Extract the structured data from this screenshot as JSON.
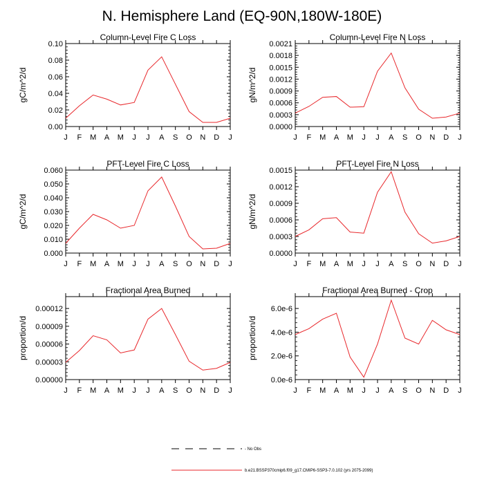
{
  "title": "N. Hemisphere Land (EQ-90N,180W-180E)",
  "months": [
    "J",
    "F",
    "M",
    "A",
    "M",
    "J",
    "J",
    "A",
    "S",
    "O",
    "N",
    "D",
    "J"
  ],
  "line_color": "#e8262a",
  "legend": {
    "entries": [
      {
        "label": "No Obs",
        "style": "dashed",
        "color": "#000000"
      },
      {
        "label": "b.e21.BSSP370cmip6.f09_g17.CMIP6-SSP3-7.0.102 (yrs 2075-2099)",
        "style": "solid",
        "color": "#e8262a"
      }
    ]
  },
  "chart_data": [
    {
      "type": "line",
      "title": "Column-Level Fire C Loss",
      "ylabel": "gC/m^2/d",
      "ylim": [
        0,
        0.1
      ],
      "yticks": [
        0,
        0.02,
        0.04,
        0.06,
        0.08,
        0.1
      ],
      "ytick_labels": [
        "0.00",
        "0.02",
        "0.04",
        "0.06",
        "0.08",
        "0.10"
      ],
      "x": [
        "J",
        "F",
        "M",
        "A",
        "M",
        "J",
        "J",
        "A",
        "S",
        "O",
        "N",
        "D",
        "J"
      ],
      "values": [
        0.01,
        0.025,
        0.038,
        0.033,
        0.026,
        0.029,
        0.068,
        0.084,
        0.051,
        0.018,
        0.005,
        0.005,
        0.01
      ]
    },
    {
      "type": "line",
      "title": "Column-Level Fire N Loss",
      "ylabel": "gN/m^2/d",
      "ylim": [
        0,
        0.0021
      ],
      "yticks": [
        0,
        0.0003,
        0.0006,
        0.0009,
        0.0012,
        0.0015,
        0.0018,
        0.0021
      ],
      "ytick_labels": [
        "0.0000",
        "0.0003",
        "0.0006",
        "0.0009",
        "0.0012",
        "0.0015",
        "0.0018",
        "0.0021"
      ],
      "x": [
        "J",
        "F",
        "M",
        "A",
        "M",
        "J",
        "J",
        "A",
        "S",
        "O",
        "N",
        "D",
        "J"
      ],
      "values": [
        0.00034,
        0.00051,
        0.00074,
        0.00076,
        0.00049,
        0.0005,
        0.0014,
        0.00186,
        0.00098,
        0.00044,
        0.00021,
        0.00024,
        0.00034
      ]
    },
    {
      "type": "line",
      "title": "PFT-Level Fire C Loss",
      "ylabel": "gC/m^2/d",
      "ylim": [
        0,
        0.06
      ],
      "yticks": [
        0,
        0.01,
        0.02,
        0.03,
        0.04,
        0.05,
        0.06
      ],
      "ytick_labels": [
        "0.000",
        "0.010",
        "0.020",
        "0.030",
        "0.040",
        "0.050",
        "0.060"
      ],
      "x": [
        "J",
        "F",
        "M",
        "A",
        "M",
        "J",
        "J",
        "A",
        "S",
        "O",
        "N",
        "D",
        "J"
      ],
      "values": [
        0.007,
        0.018,
        0.028,
        0.024,
        0.018,
        0.02,
        0.045,
        0.055,
        0.034,
        0.012,
        0.003,
        0.0035,
        0.007
      ]
    },
    {
      "type": "line",
      "title": "PFT-Level Fire N Loss",
      "ylabel": "gN/m^2/d",
      "ylim": [
        0,
        0.0015
      ],
      "yticks": [
        0,
        0.0003,
        0.0006,
        0.0009,
        0.0012,
        0.0015
      ],
      "ytick_labels": [
        "0.0000",
        "0.0003",
        "0.0006",
        "0.0009",
        "0.0012",
        "0.0015"
      ],
      "x": [
        "J",
        "F",
        "M",
        "A",
        "M",
        "J",
        "J",
        "A",
        "S",
        "O",
        "N",
        "D",
        "J"
      ],
      "values": [
        0.0003,
        0.00042,
        0.00062,
        0.00064,
        0.00038,
        0.00036,
        0.0011,
        0.00147,
        0.00074,
        0.00035,
        0.00018,
        0.00022,
        0.0003
      ]
    },
    {
      "type": "line",
      "title": "Fractional Area Burned",
      "ylabel": "proportion/d",
      "ylim": [
        0,
        0.00014
      ],
      "yticks": [
        0,
        3e-05,
        6e-05,
        9e-05,
        0.00012
      ],
      "ytick_labels": [
        "0.00000",
        "0.00003",
        "0.00006",
        "0.00009",
        "0.00012"
      ],
      "x": [
        "J",
        "F",
        "M",
        "A",
        "M",
        "J",
        "J",
        "A",
        "S",
        "O",
        "N",
        "D",
        "J"
      ],
      "values": [
        2.9e-05,
        4.9e-05,
        7.4e-05,
        6.7e-05,
        4.5e-05,
        5e-05,
        0.000102,
        0.00012,
        7.6e-05,
        3.1e-05,
        1.6e-05,
        1.9e-05,
        2.9e-05
      ]
    },
    {
      "type": "line",
      "title": "Fractional Area Burned - Crop",
      "ylabel": "proportion/d",
      "ylim": [
        0,
        7e-06
      ],
      "yticks": [
        0,
        2e-06,
        4e-06,
        6e-06
      ],
      "ytick_labels": [
        "0.0e-6",
        "2.0e-6",
        "4.0e-6",
        "6.0e-6"
      ],
      "x": [
        "J",
        "F",
        "M",
        "A",
        "M",
        "J",
        "J",
        "A",
        "S",
        "O",
        "N",
        "D",
        "J"
      ],
      "values": [
        3.8e-06,
        4.3e-06,
        5.1e-06,
        5.6e-06,
        1.9e-06,
        2e-07,
        3e-06,
        6.7e-06,
        3.5e-06,
        3e-06,
        5e-06,
        4.2e-06,
        3.8e-06
      ]
    }
  ]
}
